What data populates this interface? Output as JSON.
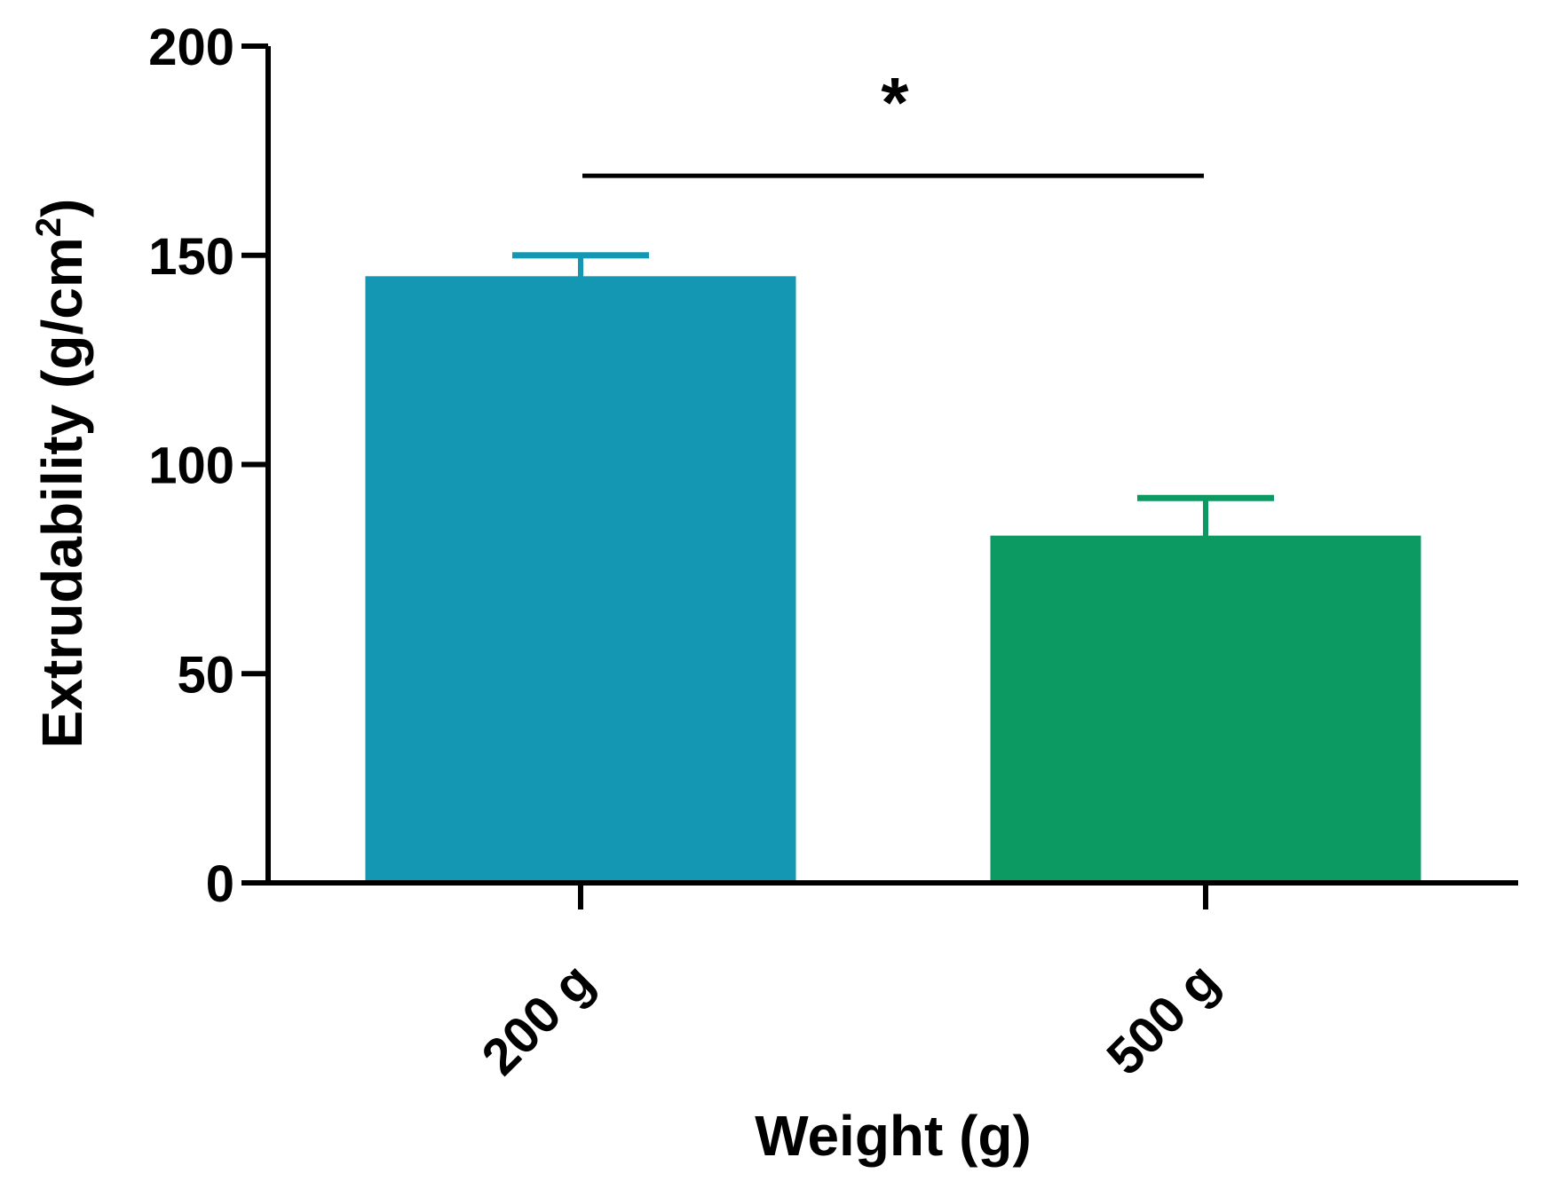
{
  "chart_data": {
    "type": "bar",
    "title": "",
    "xlabel": "Weight (g)",
    "ylabel": "Extrudability (g/cm",
    "ylabel_superscript": "2",
    "ylabel_close": ")",
    "categories": [
      "200 g",
      "500 g"
    ],
    "values": [
      145,
      83
    ],
    "error_upper": [
      150,
      92
    ],
    "colors": [
      "#1497b2",
      "#0d9962"
    ],
    "ylim": [
      0,
      200
    ],
    "yticks": [
      0,
      50,
      100,
      150,
      200
    ],
    "ytick_labels": [
      "0",
      "50",
      "100",
      "150",
      "200"
    ],
    "grid": false,
    "legend": "none",
    "significance": {
      "label": "*",
      "between": [
        "200 g",
        "500 g"
      ],
      "value": 169
    }
  }
}
